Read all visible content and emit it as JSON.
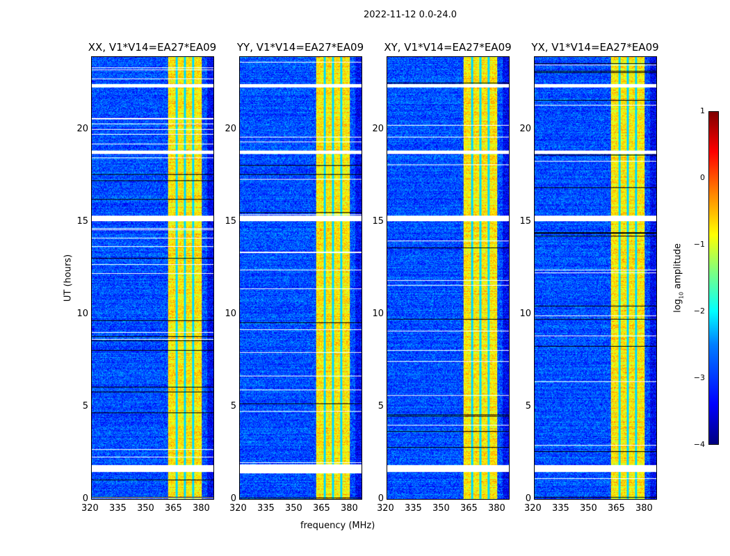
{
  "chart_data": {
    "type": "heatmap",
    "title": "2022-11-12 0.0-24.0",
    "panels": [
      {
        "title": "XX, V1*V14=EA27*EA09"
      },
      {
        "title": "YY, V1*V14=EA27*EA09"
      },
      {
        "title": "XY, V1*V14=EA27*EA09"
      },
      {
        "title": "YX, V1*V14=EA27*EA09"
      }
    ],
    "xlabel": "frequency (MHz)",
    "ylabel": "UT (hours)",
    "xlim": [
      320,
      386.4
    ],
    "ylim": [
      0,
      24
    ],
    "xticks": [
      "320",
      "335",
      "350",
      "365",
      "380"
    ],
    "xtick_values": [
      320,
      335,
      350,
      365,
      380
    ],
    "yticks": [
      "0",
      "5",
      "10",
      "15",
      "20"
    ],
    "ytick_values": [
      0,
      5,
      10,
      15,
      20
    ],
    "colorbar": {
      "label_prefix": "log",
      "label_sub": "10",
      "label_suffix": " amplitude",
      "range": [
        -4,
        1
      ],
      "ticks": [
        "1",
        "0",
        "−1",
        "−2",
        "−3",
        "−4"
      ],
      "tick_values": [
        1,
        0,
        -1,
        -2,
        -3,
        -4
      ],
      "colormap": "jet"
    },
    "background_level_log10": -3,
    "rfi_band_mhz": [
      361.5,
      380
    ],
    "rfi_level_log10": -0.8,
    "flagged_hours": [
      [
        1.5,
        1.85
      ],
      [
        15.1,
        15.4
      ],
      [
        18.75,
        18.95
      ],
      [
        22.35,
        22.55
      ]
    ]
  }
}
